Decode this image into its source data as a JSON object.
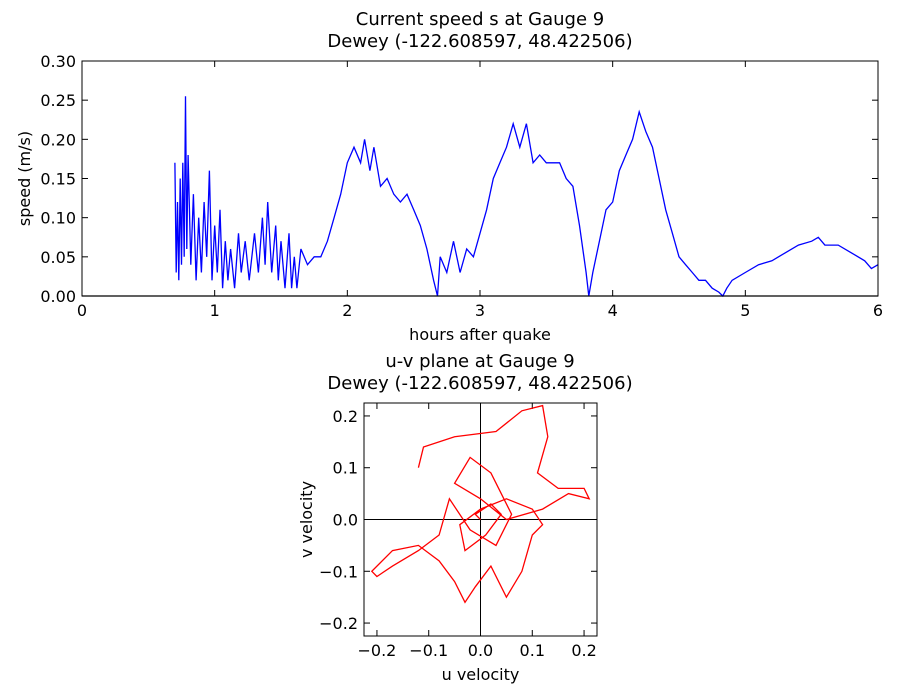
{
  "chart_data": [
    {
      "type": "line",
      "title": "Current speed s at Gauge 9\nDewey  (-122.608597, 48.422506)",
      "xlabel": "hours after quake",
      "ylabel": "speed (m/s)",
      "xlim": [
        0,
        6
      ],
      "ylim": [
        0,
        0.3
      ],
      "xticks": [
        0,
        1,
        2,
        3,
        4,
        5,
        6
      ],
      "yticks": [
        {
          "value": 0,
          "label": "0.00"
        },
        {
          "value": 0.05,
          "label": "0.05"
        },
        {
          "value": 0.1,
          "label": "0.10"
        },
        {
          "value": 0.15,
          "label": "0.15"
        },
        {
          "value": 0.2,
          "label": "0.20"
        },
        {
          "value": 0.25,
          "label": "0.25"
        },
        {
          "value": 0.3,
          "label": "0.30"
        }
      ],
      "series": [
        {
          "color": "#000000",
          "x": [
            0,
            6
          ],
          "values": [
            0,
            0
          ]
        },
        {
          "color": "#0000ff",
          "x": [
            0.7,
            0.71,
            0.72,
            0.73,
            0.74,
            0.75,
            0.76,
            0.77,
            0.78,
            0.79,
            0.8,
            0.82,
            0.84,
            0.86,
            0.88,
            0.9,
            0.92,
            0.94,
            0.96,
            0.98,
            1.0,
            1.02,
            1.04,
            1.06,
            1.08,
            1.1,
            1.12,
            1.15,
            1.18,
            1.2,
            1.23,
            1.26,
            1.3,
            1.33,
            1.36,
            1.38,
            1.4,
            1.43,
            1.46,
            1.48,
            1.5,
            1.53,
            1.56,
            1.58,
            1.6,
            1.62,
            1.65,
            1.7,
            1.75,
            1.8,
            1.85,
            1.9,
            1.95,
            2.0,
            2.05,
            2.1,
            2.13,
            2.17,
            2.2,
            2.25,
            2.3,
            2.35,
            2.4,
            2.45,
            2.5,
            2.55,
            2.6,
            2.65,
            2.68,
            2.7,
            2.75,
            2.8,
            2.85,
            2.9,
            2.95,
            3.0,
            3.05,
            3.1,
            3.15,
            3.2,
            3.25,
            3.3,
            3.35,
            3.4,
            3.45,
            3.5,
            3.55,
            3.6,
            3.65,
            3.7,
            3.75,
            3.8,
            3.82,
            3.85,
            3.9,
            3.95,
            4.0,
            4.05,
            4.1,
            4.15,
            4.2,
            4.25,
            4.3,
            4.35,
            4.4,
            4.45,
            4.5,
            4.55,
            4.6,
            4.65,
            4.7,
            4.75,
            4.8,
            4.83,
            4.86,
            4.9,
            5.0,
            5.1,
            5.2,
            5.3,
            5.4,
            5.5,
            5.55,
            5.6,
            5.7,
            5.8,
            5.9,
            5.95,
            6.0
          ],
          "values": [
            0.17,
            0.03,
            0.12,
            0.02,
            0.15,
            0.04,
            0.17,
            0.05,
            0.255,
            0.06,
            0.18,
            0.04,
            0.13,
            0.02,
            0.1,
            0.03,
            0.12,
            0.05,
            0.16,
            0.02,
            0.09,
            0.03,
            0.11,
            0.01,
            0.07,
            0.02,
            0.06,
            0.01,
            0.08,
            0.03,
            0.07,
            0.02,
            0.08,
            0.03,
            0.1,
            0.04,
            0.12,
            0.03,
            0.09,
            0.02,
            0.07,
            0.01,
            0.08,
            0.01,
            0.05,
            0.01,
            0.06,
            0.04,
            0.05,
            0.05,
            0.07,
            0.1,
            0.13,
            0.17,
            0.19,
            0.17,
            0.2,
            0.16,
            0.19,
            0.14,
            0.15,
            0.13,
            0.12,
            0.13,
            0.11,
            0.09,
            0.06,
            0.02,
            0.0,
            0.05,
            0.03,
            0.07,
            0.03,
            0.06,
            0.05,
            0.08,
            0.11,
            0.15,
            0.17,
            0.19,
            0.22,
            0.19,
            0.22,
            0.17,
            0.18,
            0.17,
            0.17,
            0.17,
            0.15,
            0.14,
            0.09,
            0.03,
            0.0,
            0.03,
            0.07,
            0.11,
            0.12,
            0.16,
            0.18,
            0.2,
            0.235,
            0.21,
            0.19,
            0.15,
            0.11,
            0.08,
            0.05,
            0.04,
            0.03,
            0.02,
            0.02,
            0.01,
            0.005,
            0.0,
            0.01,
            0.02,
            0.03,
            0.04,
            0.045,
            0.055,
            0.065,
            0.07,
            0.075,
            0.065,
            0.065,
            0.055,
            0.045,
            0.035,
            0.04
          ]
        }
      ]
    },
    {
      "type": "line",
      "title": "u-v plane at Gauge 9\nDewey  (-122.608597, 48.422506)",
      "xlabel": "u velocity",
      "ylabel": "v velocity",
      "xlim": [
        -0.225,
        0.225
      ],
      "ylim": [
        -0.225,
        0.225
      ],
      "xticks": [
        {
          "value": -0.2,
          "label": "−0.2"
        },
        {
          "value": -0.1,
          "label": "−0.1"
        },
        {
          "value": 0,
          "label": "0.0"
        },
        0.1,
        0.2
      ],
      "yticks": [
        {
          "value": -0.2,
          "label": "−0.2"
        },
        {
          "value": -0.1,
          "label": "−0.1"
        },
        {
          "value": 0,
          "label": "0.0"
        },
        0.1,
        0.2
      ],
      "axes_cross": true,
      "series": [
        {
          "color": "#ff0000",
          "x": [
            -0.12,
            -0.11,
            -0.05,
            0.03,
            0.08,
            0.12,
            0.13,
            0.11,
            0.15,
            0.2,
            0.21,
            0.17,
            0.12,
            0.05,
            0.0,
            -0.05,
            -0.02,
            0.02,
            0.06,
            0.03,
            -0.02,
            -0.06,
            -0.08,
            -0.12,
            -0.17,
            -0.2,
            -0.21,
            -0.17,
            -0.12,
            -0.08,
            -0.05,
            -0.03,
            -0.01,
            0.02,
            0.05,
            0.08,
            0.1,
            0.12,
            0.1,
            0.05,
            0.0,
            -0.04,
            -0.03,
            0.01,
            0.04,
            0.02,
            -0.01,
            0.0
          ],
          "values": [
            0.1,
            0.14,
            0.16,
            0.17,
            0.21,
            0.22,
            0.16,
            0.09,
            0.06,
            0.06,
            0.04,
            0.05,
            0.02,
            0.0,
            0.04,
            0.07,
            0.12,
            0.09,
            0.01,
            -0.05,
            -0.02,
            0.04,
            -0.03,
            -0.06,
            -0.09,
            -0.11,
            -0.1,
            -0.06,
            -0.05,
            -0.08,
            -0.12,
            -0.16,
            -0.13,
            -0.09,
            -0.15,
            -0.1,
            -0.03,
            -0.01,
            0.02,
            0.04,
            0.02,
            -0.01,
            -0.06,
            -0.03,
            0.01,
            0.03,
            0.01,
            0.0
          ]
        }
      ]
    }
  ]
}
